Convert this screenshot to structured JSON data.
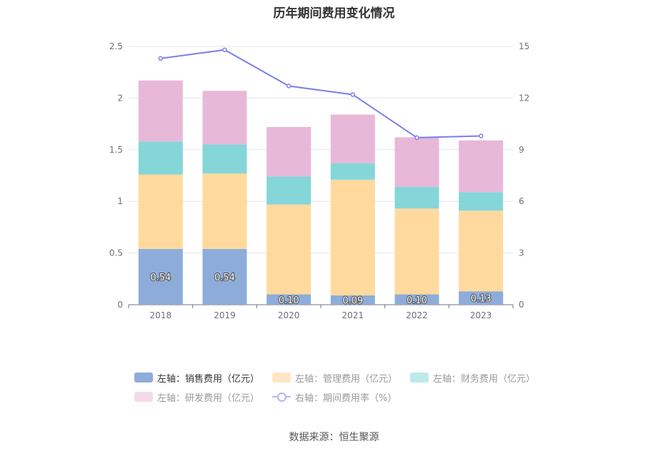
{
  "title": "历年期间费用变化情况",
  "source": "数据来源：恒生聚源",
  "chart_data": {
    "type": "bar",
    "stacked": true,
    "categories": [
      "2018",
      "2019",
      "2020",
      "2021",
      "2022",
      "2023"
    ],
    "ylim_left": [
      0,
      2.5
    ],
    "yticks_left": [
      "0",
      "0.5",
      "1",
      "1.5",
      "2",
      "2.5"
    ],
    "ylim_right": [
      0,
      15
    ],
    "yticks_right": [
      "0",
      "3",
      "6",
      "9",
      "12",
      "15"
    ],
    "grid": true,
    "legend_position": "bottom",
    "series": [
      {
        "name": "左轴：销售费用（亿元）",
        "axis": "left",
        "type": "bar",
        "color": "#8eacd9",
        "values": [
          0.54,
          0.54,
          0.1,
          0.09,
          0.1,
          0.13
        ],
        "labels": [
          "0.54",
          "0.54",
          "0.10",
          "0.09",
          "0.10",
          "0.13"
        ]
      },
      {
        "name": "左轴：管理费用（亿元）",
        "axis": "left",
        "type": "bar",
        "color": "#ffd99e",
        "values": [
          0.72,
          0.73,
          0.87,
          1.12,
          0.83,
          0.78
        ]
      },
      {
        "name": "左轴：财务费用（亿元）",
        "axis": "left",
        "type": "bar",
        "color": "#85d6d9",
        "values": [
          0.32,
          0.28,
          0.27,
          0.16,
          0.21,
          0.18
        ]
      },
      {
        "name": "左轴：研发费用（亿元）",
        "axis": "left",
        "type": "bar",
        "color": "#e8b8d9",
        "values": [
          0.59,
          0.52,
          0.48,
          0.47,
          0.48,
          0.5
        ]
      },
      {
        "name": "右轴：期间费用率（%）",
        "axis": "right",
        "type": "line",
        "color": "#7a7fea",
        "values": [
          14.3,
          14.8,
          12.7,
          12.2,
          9.7,
          9.8
        ]
      }
    ]
  },
  "legend_colors": {
    "sales": "#8eacd9",
    "admin": "#ffe6c4",
    "finance": "#bfeaea",
    "rnd": "#f3d9ea"
  }
}
